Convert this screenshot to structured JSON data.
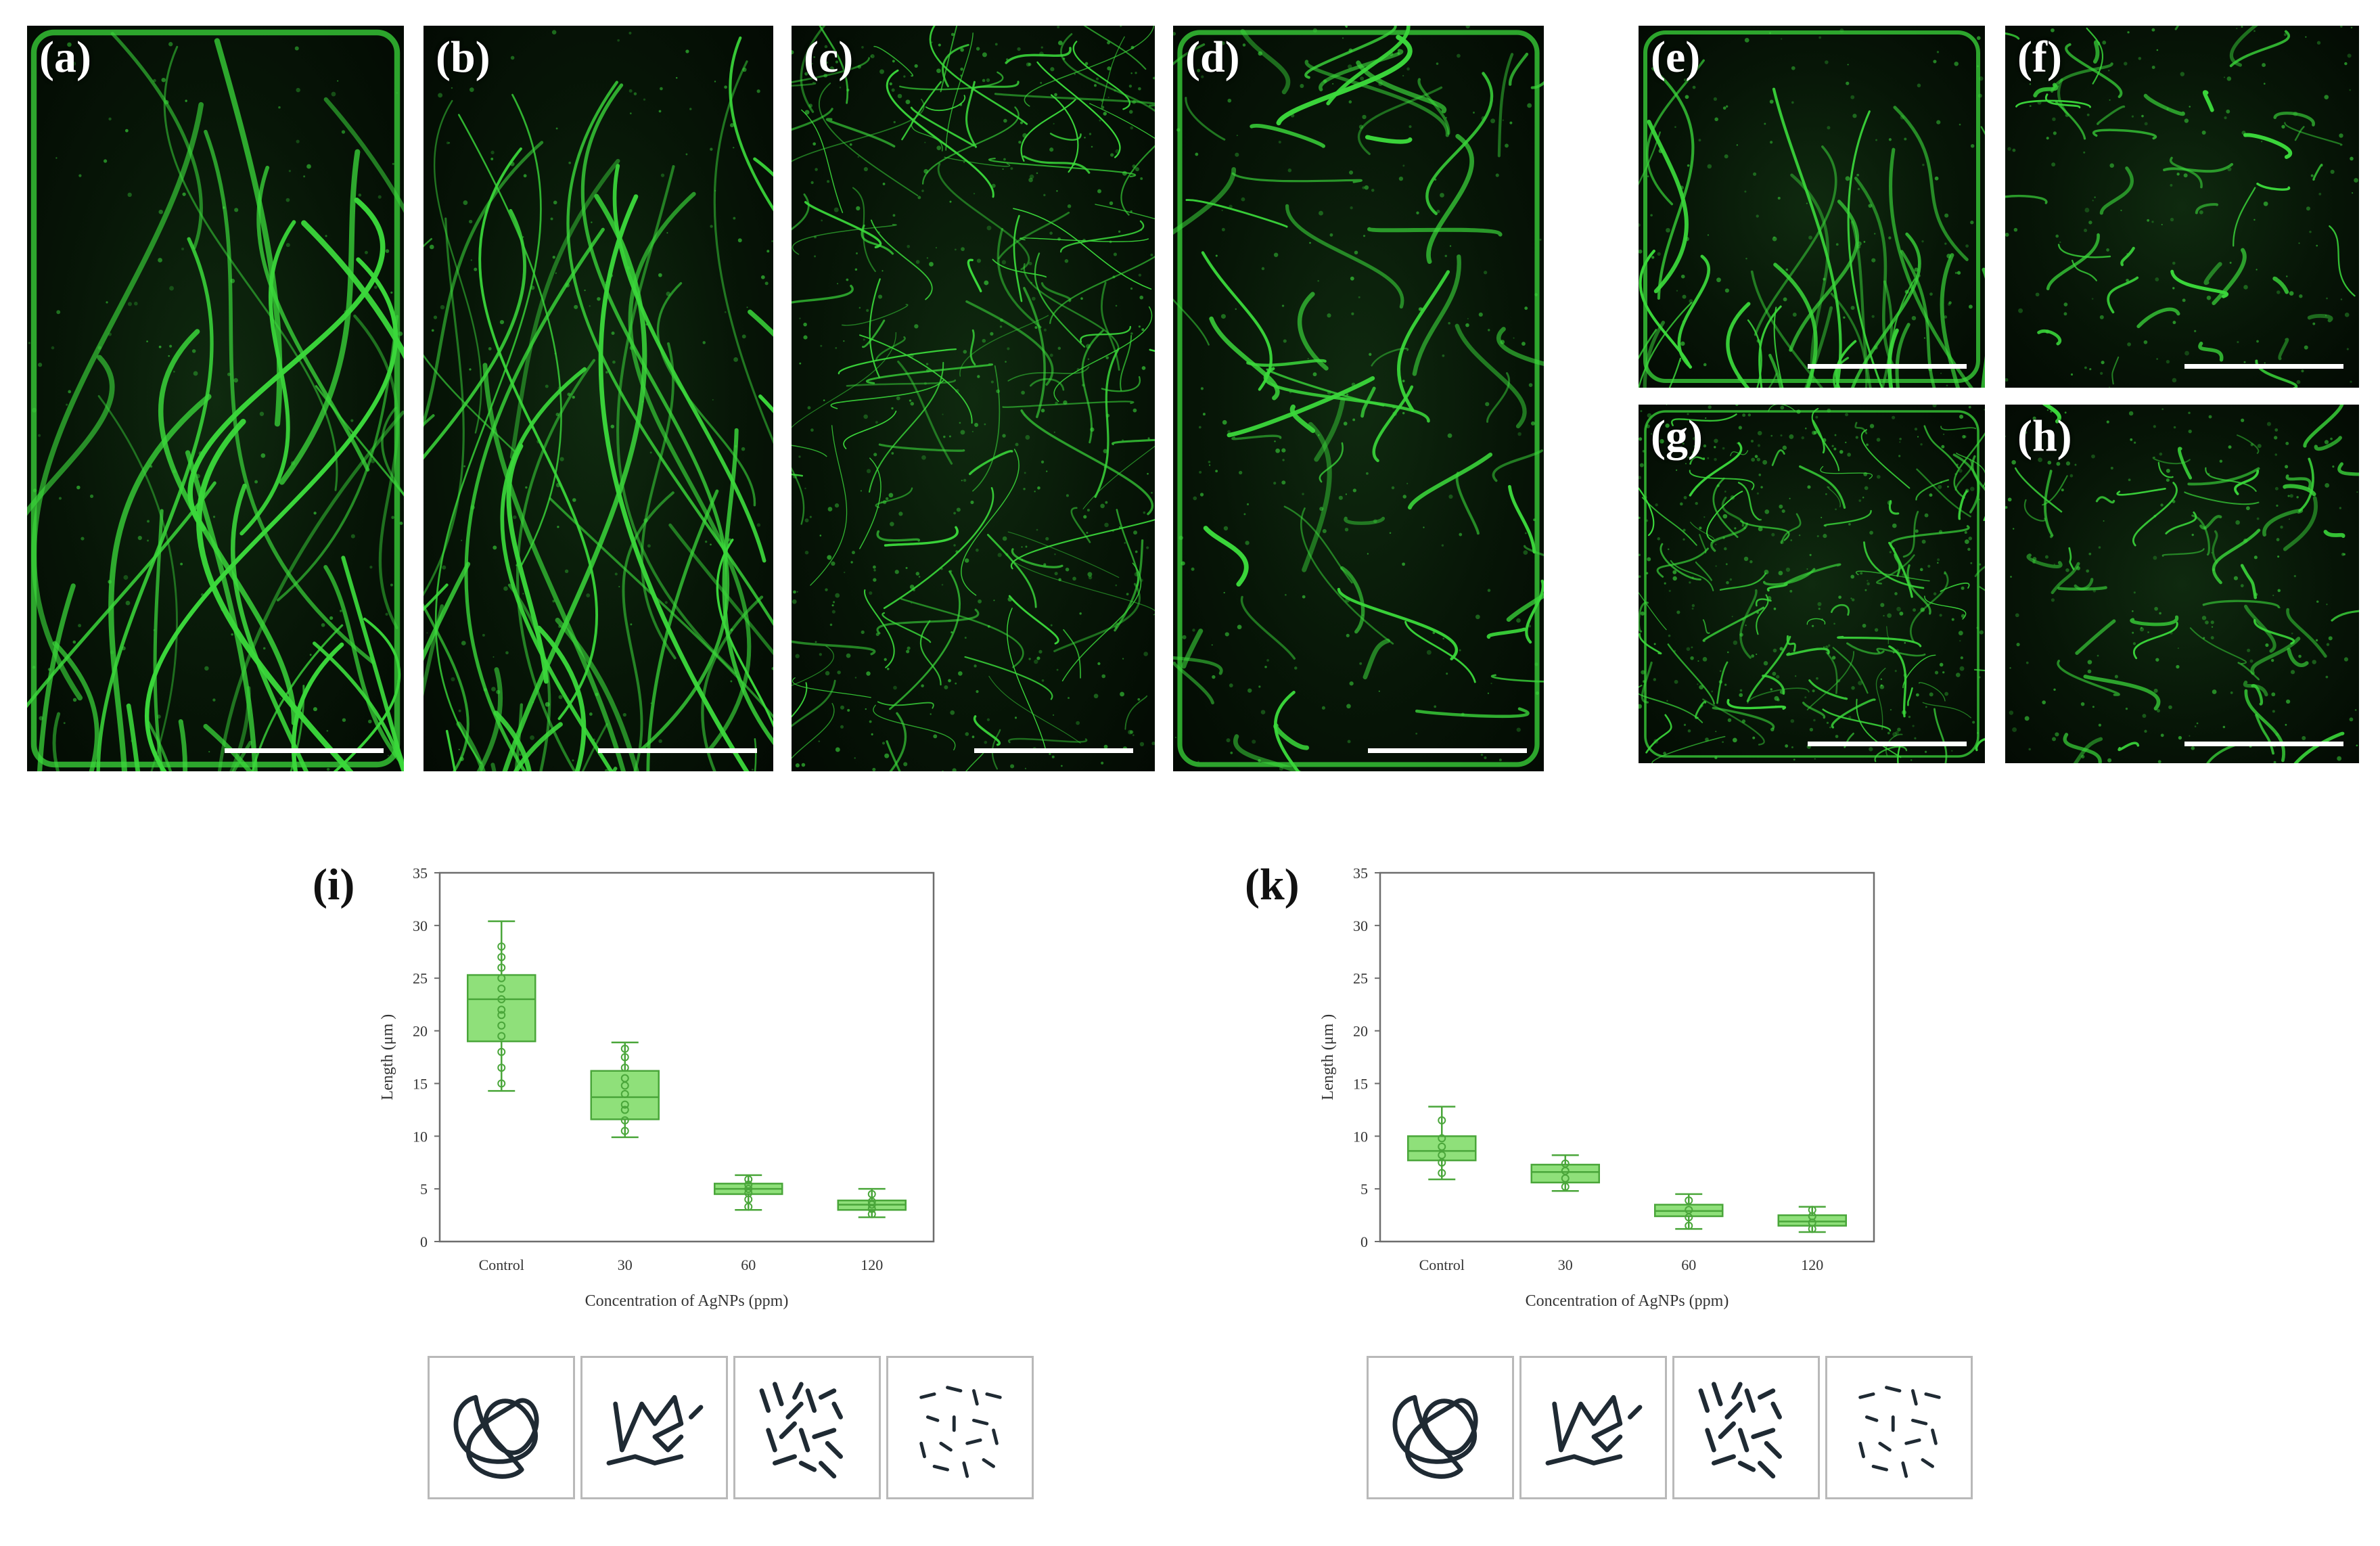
{
  "panels": [
    {
      "label": "(a)"
    },
    {
      "label": "(b)"
    },
    {
      "label": "(c)"
    },
    {
      "label": "(d)"
    },
    {
      "label": "(e)"
    },
    {
      "label": "(f)"
    },
    {
      "label": "(g)"
    },
    {
      "label": "(h)"
    }
  ],
  "colors": {
    "filament": "#3bd83b",
    "box_fill": "#8fe07a",
    "box_stroke": "#4aa63a",
    "axis": "#555555",
    "schematic_ink": "#1f2a33"
  },
  "chart_data": [
    {
      "type": "box",
      "panel_label": "(i)",
      "categories": [
        "Control",
        "30",
        "60",
        "120"
      ],
      "xlabel": "Concentration of AgNPs (ppm)",
      "ylabel": "Length (μm )",
      "ylim": [
        0,
        35
      ],
      "yticks": [
        0,
        5,
        10,
        15,
        20,
        25,
        30,
        35
      ],
      "grid": false,
      "boxes": [
        {
          "category": "Control",
          "min": 14.3,
          "q1": 19.0,
          "median": 23.0,
          "q3": 25.3,
          "max": 30.4,
          "points": [
            15,
            16.5,
            18,
            19.5,
            20.5,
            21.5,
            22,
            23,
            24,
            25,
            26,
            27,
            28
          ]
        },
        {
          "category": "30",
          "min": 9.9,
          "q1": 11.6,
          "median": 13.7,
          "q3": 16.2,
          "max": 18.9,
          "points": [
            10.5,
            11.5,
            12.5,
            13,
            14,
            14.8,
            15.5,
            16.5,
            17.5,
            18.3
          ]
        },
        {
          "category": "60",
          "min": 3.0,
          "q1": 4.5,
          "median": 5.0,
          "q3": 5.5,
          "max": 6.3,
          "points": [
            3.3,
            4,
            4.6,
            5,
            5.4,
            5.9
          ]
        },
        {
          "category": "120",
          "min": 2.3,
          "q1": 3.0,
          "median": 3.5,
          "q3": 3.9,
          "max": 5.0,
          "points": [
            2.6,
            3.1,
            3.5,
            3.8,
            4.5
          ]
        }
      ]
    },
    {
      "type": "box",
      "panel_label": "(k)",
      "categories": [
        "Control",
        "30",
        "60",
        "120"
      ],
      "xlabel": "Concentration of AgNPs (ppm)",
      "ylabel": "Length (μm )",
      "ylim": [
        0,
        35
      ],
      "yticks": [
        0,
        5,
        10,
        15,
        20,
        25,
        30,
        35
      ],
      "grid": false,
      "boxes": [
        {
          "category": "Control",
          "min": 5.9,
          "q1": 7.7,
          "median": 8.6,
          "q3": 10.0,
          "max": 12.8,
          "points": [
            6.5,
            7.5,
            8.2,
            9,
            9.8,
            11.5
          ]
        },
        {
          "category": "30",
          "min": 4.8,
          "q1": 5.6,
          "median": 6.6,
          "q3": 7.3,
          "max": 8.2,
          "points": [
            5.2,
            6,
            6.7,
            7.4
          ]
        },
        {
          "category": "60",
          "min": 1.2,
          "q1": 2.4,
          "median": 2.9,
          "q3": 3.5,
          "max": 4.5,
          "points": [
            1.5,
            2.3,
            3,
            3.9
          ]
        },
        {
          "category": "120",
          "min": 0.9,
          "q1": 1.5,
          "median": 1.9,
          "q3": 2.5,
          "max": 3.3,
          "points": [
            1.2,
            1.8,
            2.4,
            3
          ]
        }
      ]
    }
  ],
  "schematics": [
    "tangled-network",
    "partially-fragmented",
    "fragmented",
    "short-fragments"
  ]
}
